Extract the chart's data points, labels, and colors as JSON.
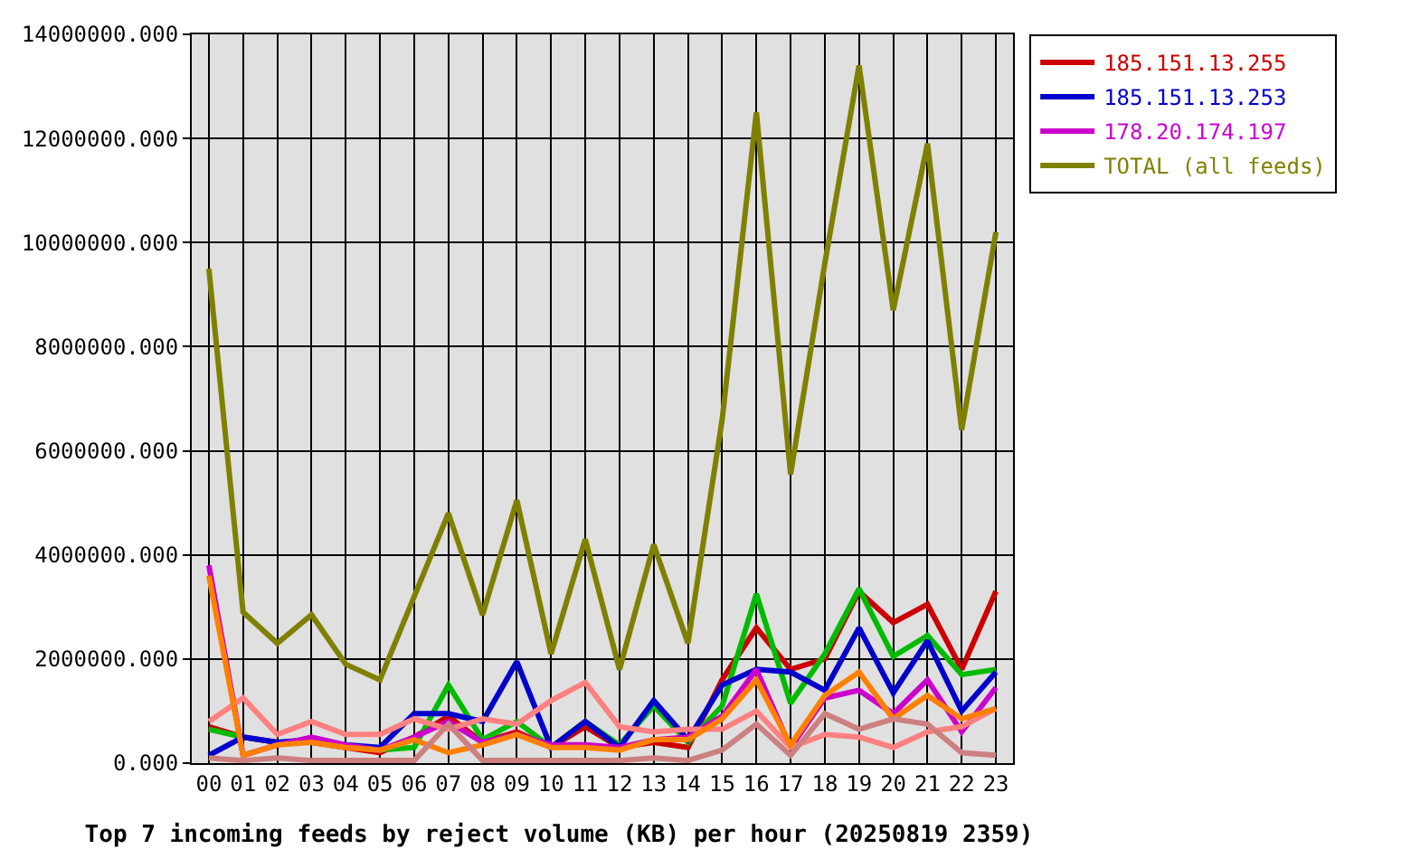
{
  "chart_data": {
    "type": "line",
    "title": "Top 7 incoming feeds by reject volume (KB) per hour (20250819 2359)",
    "categories": [
      "00",
      "01",
      "02",
      "03",
      "04",
      "05",
      "06",
      "07",
      "08",
      "09",
      "10",
      "11",
      "12",
      "13",
      "14",
      "15",
      "16",
      "17",
      "18",
      "19",
      "20",
      "21",
      "22",
      "23"
    ],
    "ylim": [
      0,
      14000000
    ],
    "yticks": [
      {
        "value": 0,
        "label": "0.000"
      },
      {
        "value": 2000000,
        "label": "2000000.000"
      },
      {
        "value": 4000000,
        "label": "4000000.000"
      },
      {
        "value": 6000000,
        "label": "6000000.000"
      },
      {
        "value": 8000000,
        "label": "8000000.000"
      },
      {
        "value": 10000000,
        "label": "10000000.000"
      },
      {
        "value": 12000000,
        "label": "12000000.000"
      },
      {
        "value": 14000000,
        "label": "14000000.000"
      }
    ],
    "grid": true,
    "legend": "top right",
    "marker": "none",
    "series": [
      {
        "name": "185.151.13.255",
        "color": "#cc0000",
        "values": [
          700000,
          500000,
          400000,
          400000,
          300000,
          200000,
          500000,
          900000,
          400000,
          600000,
          300000,
          700000,
          300000,
          400000,
          300000,
          1600000,
          2600000,
          1800000,
          2000000,
          3300000,
          2700000,
          3050000,
          1800000,
          3300000
        ]
      },
      {
        "color": "#00bb00",
        "values": [
          650000,
          500000,
          null,
          null,
          null,
          250000,
          300000,
          1500000,
          450000,
          800000,
          300000,
          800000,
          350000,
          1100000,
          400000,
          1100000,
          3250000,
          1150000,
          2100000,
          3350000,
          2050000,
          2450000,
          1700000,
          1800000
        ]
      },
      {
        "name": "185.151.13.253",
        "color": "#0000cc",
        "values": [
          150000,
          500000,
          400000,
          450000,
          350000,
          300000,
          950000,
          950000,
          800000,
          1950000,
          300000,
          800000,
          300000,
          1200000,
          450000,
          1500000,
          1800000,
          1750000,
          1400000,
          2600000,
          1350000,
          2350000,
          1000000,
          1750000
        ]
      },
      {
        "name": "178.20.174.197",
        "color": "#cc00cc",
        "values": [
          3800000,
          150000,
          350000,
          500000,
          350000,
          250000,
          500000,
          800000,
          400000,
          550000,
          350000,
          350000,
          300000,
          450000,
          500000,
          900000,
          1800000,
          300000,
          1250000,
          1400000,
          950000,
          1600000,
          600000,
          1450000
        ]
      },
      {
        "color": "#ff8080",
        "values": [
          800000,
          1250000,
          550000,
          800000,
          550000,
          550000,
          850000,
          650000,
          850000,
          750000,
          1200000,
          1550000,
          700000,
          600000,
          650000,
          650000,
          1000000,
          300000,
          550000,
          500000,
          300000,
          600000,
          700000,
          1050000
        ]
      },
      {
        "color": "#ff8000",
        "values": [
          3600000,
          150000,
          350000,
          400000,
          300000,
          250000,
          450000,
          200000,
          350000,
          550000,
          300000,
          300000,
          250000,
          450000,
          450000,
          850000,
          1600000,
          350000,
          1300000,
          1750000,
          850000,
          1300000,
          850000,
          1050000
        ]
      },
      {
        "color": "#cc8080",
        "values": [
          100000,
          50000,
          100000,
          50000,
          50000,
          50000,
          50000,
          750000,
          50000,
          50000,
          50000,
          50000,
          50000,
          100000,
          50000,
          250000,
          750000,
          150000,
          950000,
          650000,
          850000,
          750000,
          200000,
          150000
        ]
      },
      {
        "name": "TOTAL (all feeds)",
        "color": "#808000",
        "values": [
          9500000,
          2900000,
          2300000,
          2850000,
          1900000,
          1600000,
          3200000,
          4800000,
          2850000,
          5050000,
          2100000,
          4300000,
          1800000,
          4200000,
          2300000,
          6600000,
          12500000,
          5550000,
          9600000,
          13400000,
          8700000,
          11900000,
          6400000,
          10200000
        ]
      }
    ]
  }
}
